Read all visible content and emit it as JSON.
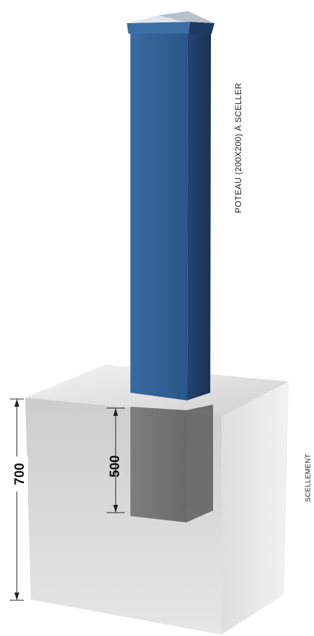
{
  "labels": {
    "post": "POTEAU (200X200) À SCELLER",
    "sealing": "SCELLEMENT"
  },
  "dimensions": {
    "total_depth": "700",
    "embed_depth": "500"
  },
  "colors": {
    "post_front": "#2f5f94",
    "post_side": "#1f3f68",
    "concrete": "#d9d9d9",
    "background": "#ffffff"
  }
}
